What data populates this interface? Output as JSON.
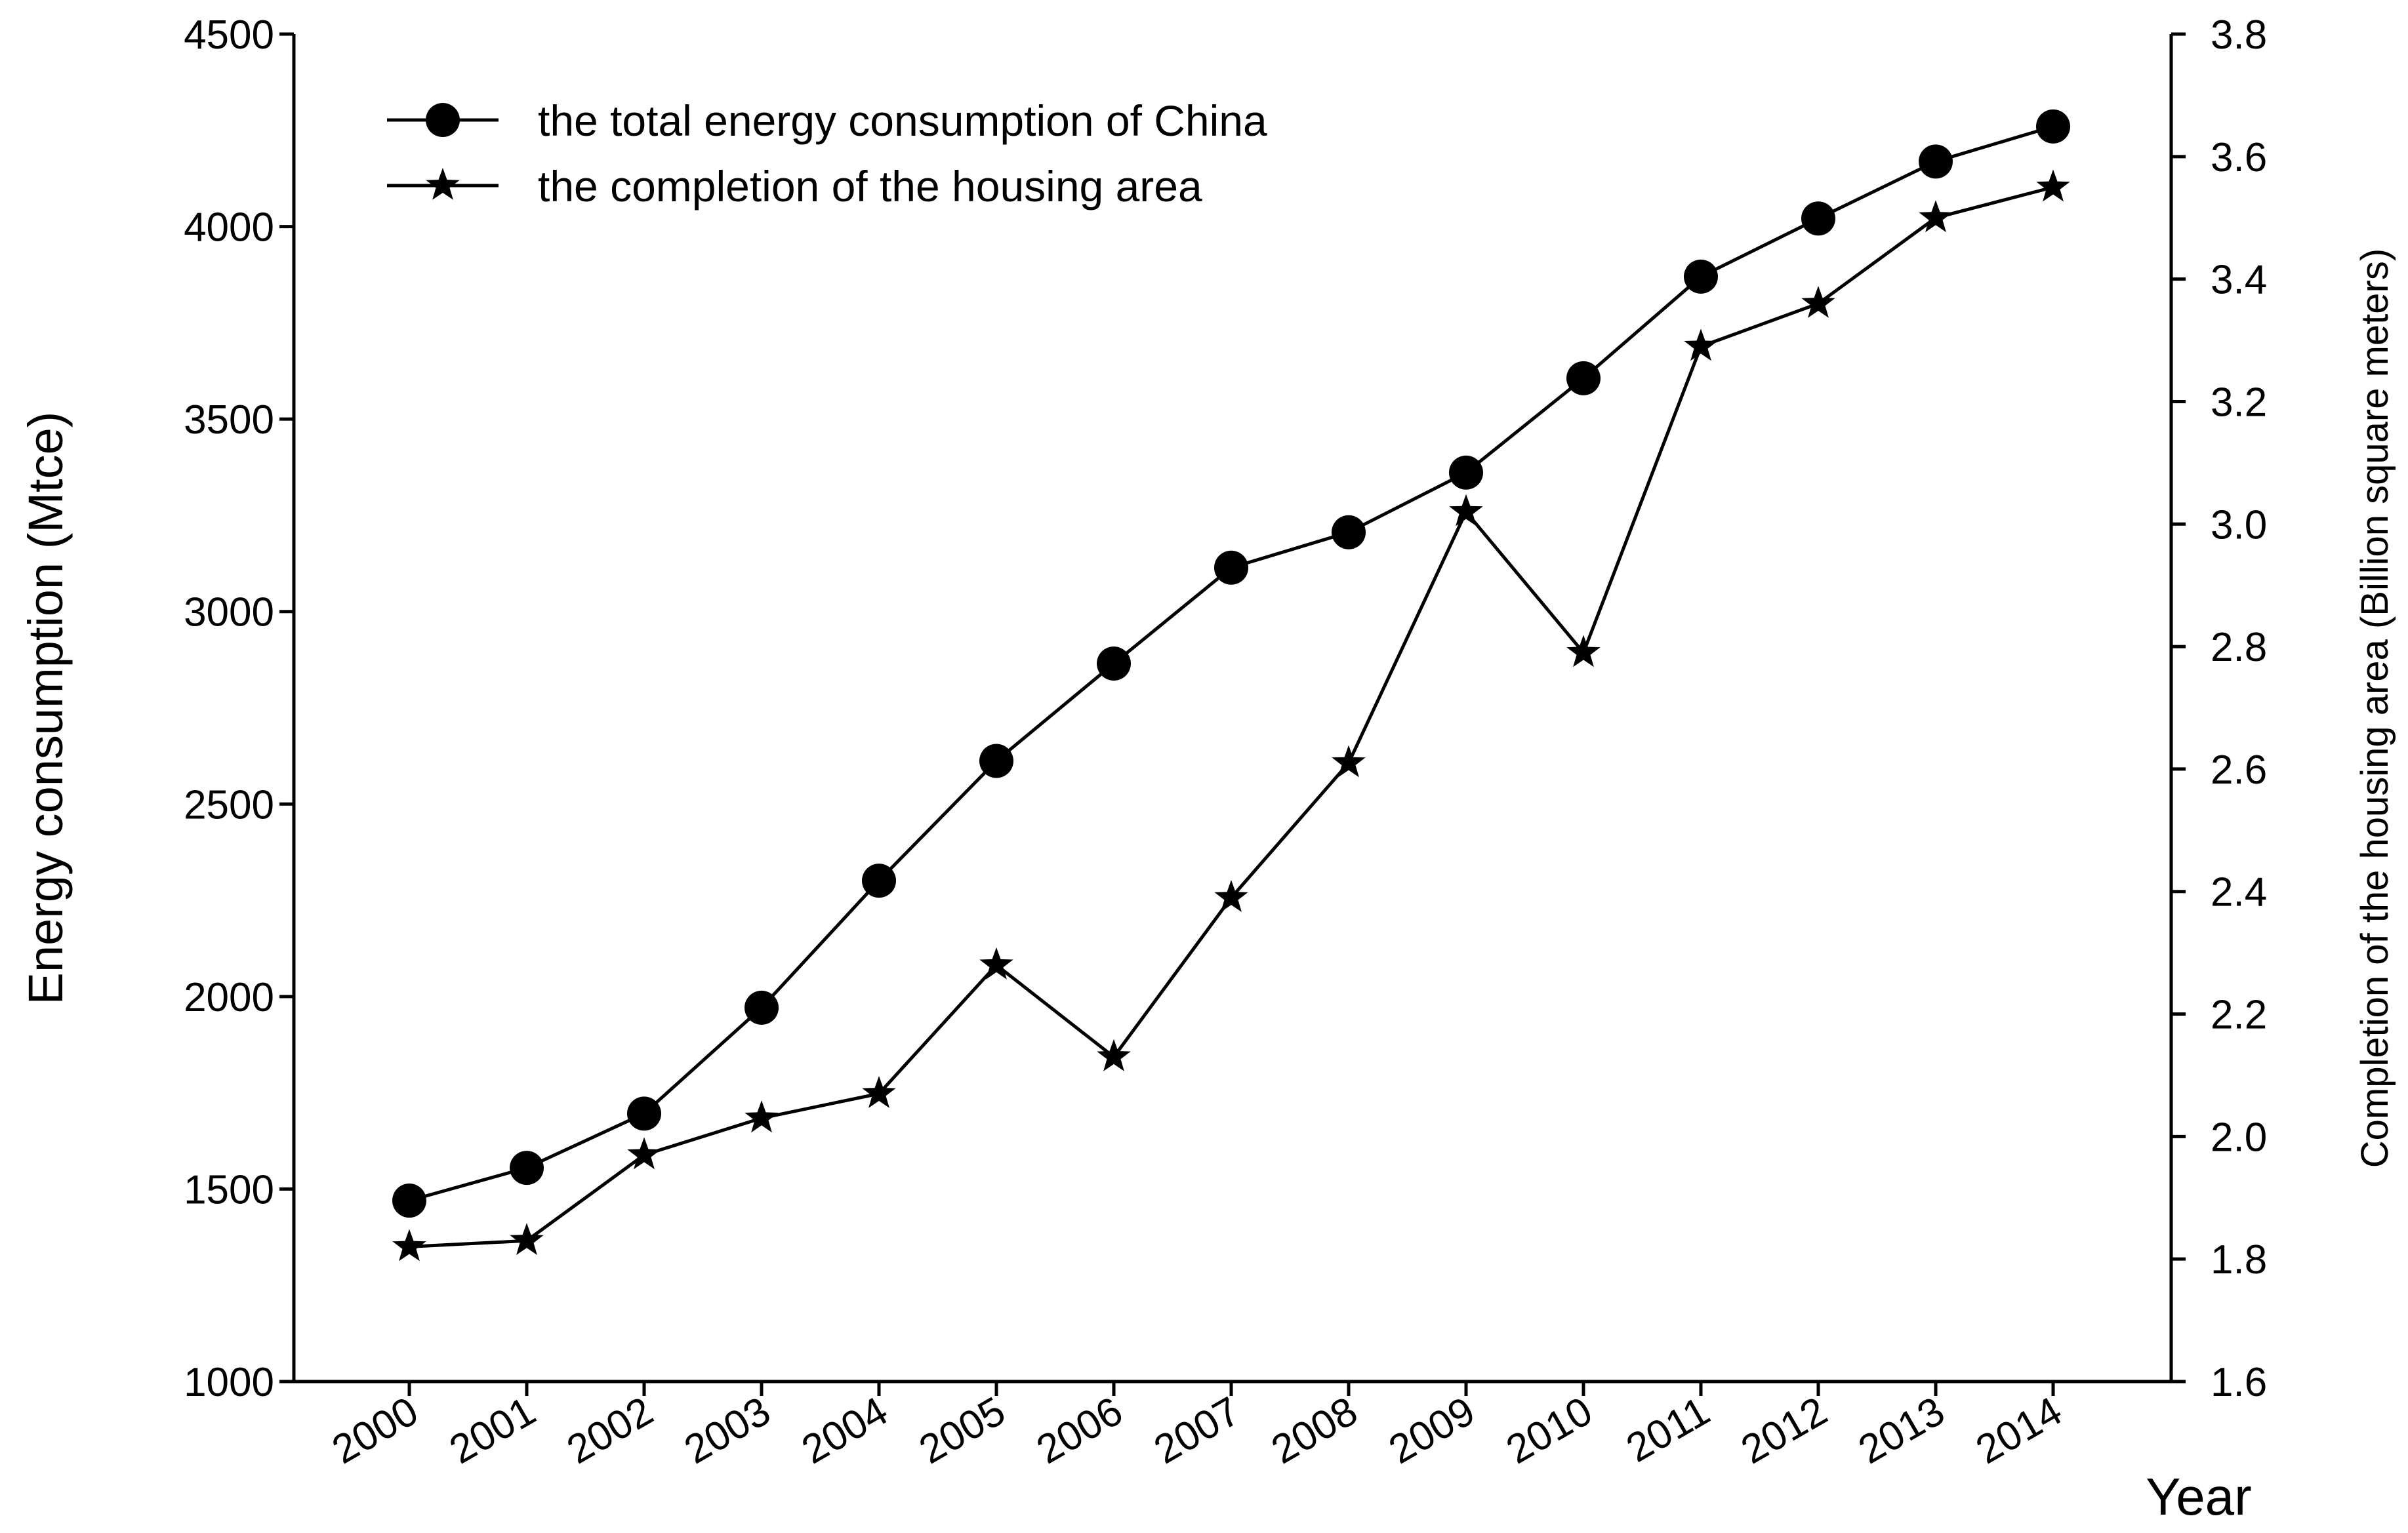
{
  "chart_data": {
    "type": "line",
    "title": "",
    "categories": [
      "2000",
      "2001",
      "2002",
      "2003",
      "2004",
      "2005",
      "2006",
      "2007",
      "2008",
      "2009",
      "2010",
      "2011",
      "2012",
      "2013",
      "2014"
    ],
    "xlabel": "Year",
    "ylabel_left": "Energy consumption (Mtce)",
    "ylabel_right": "Completion of the housing area (Billion square meters)",
    "ylim_left": [
      1000,
      4500
    ],
    "yticks_left": [
      "1000",
      "1500",
      "2000",
      "2500",
      "3000",
      "3500",
      "4000",
      "4500"
    ],
    "ylim_right": [
      1.6,
      3.8
    ],
    "yticks_right": [
      "1.6",
      "1.8",
      "2.0",
      "2.2",
      "2.4",
      "2.6",
      "2.8",
      "3.0",
      "3.2",
      "3.4",
      "3.6",
      "3.8"
    ],
    "grid": false,
    "legend_position": "top-left",
    "series": [
      {
        "name": "the total energy consumption of China",
        "axis": "left",
        "marker": "circle",
        "values": [
          1470,
          1555,
          1696,
          1971,
          2301,
          2612,
          2865,
          3114,
          3206,
          3361,
          3606,
          3870,
          4021,
          4169,
          4260
        ]
      },
      {
        "name": "the completion of the housing area",
        "axis": "right",
        "marker": "star",
        "values": [
          1.82,
          1.83,
          1.97,
          2.03,
          2.07,
          2.28,
          2.13,
          2.39,
          2.61,
          3.02,
          2.79,
          3.29,
          3.36,
          3.5,
          3.55
        ]
      }
    ]
  }
}
